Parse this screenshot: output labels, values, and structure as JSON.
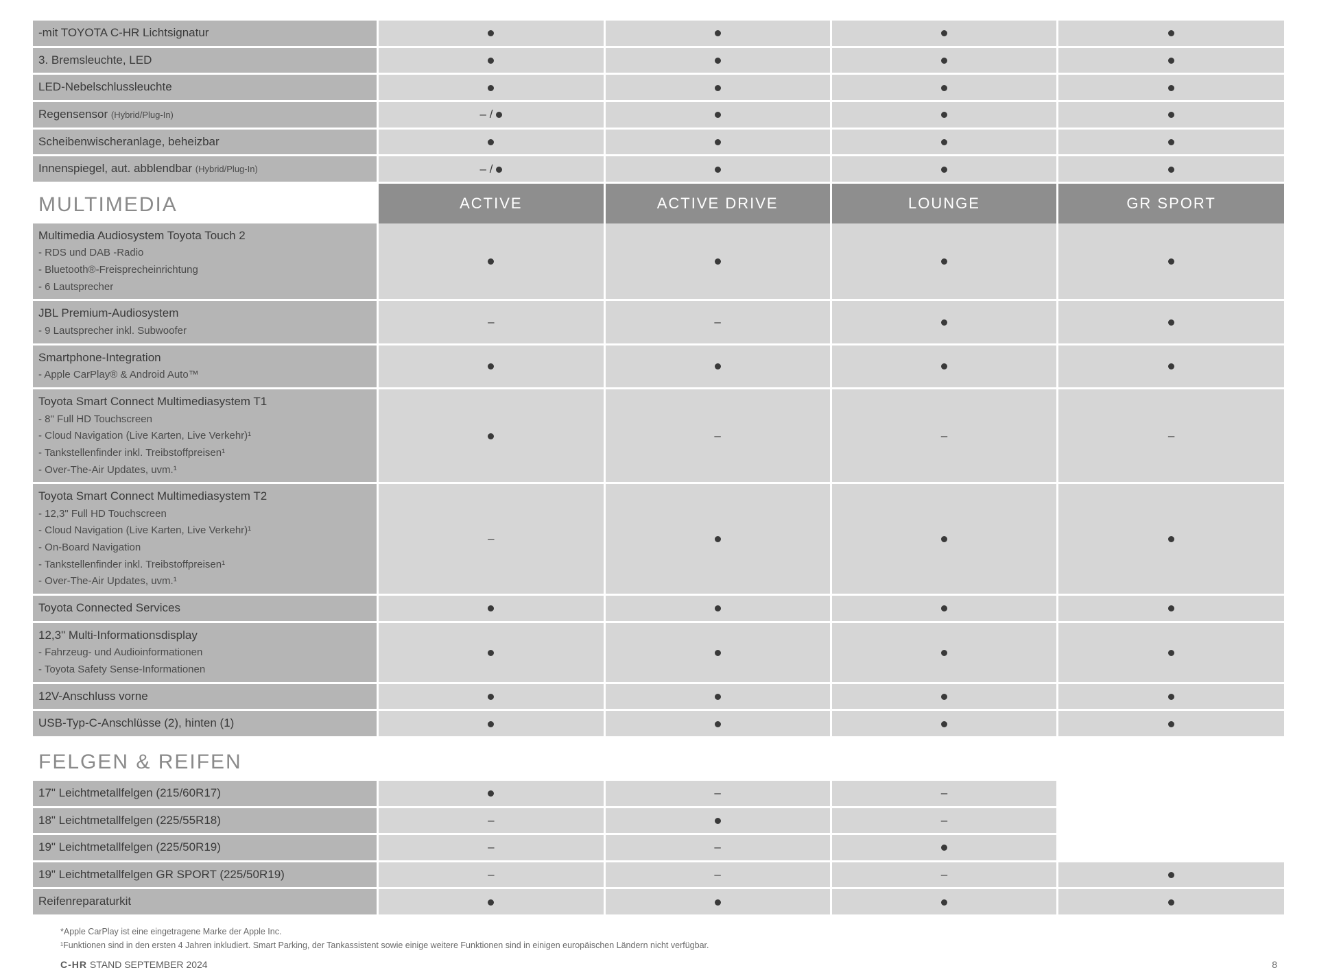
{
  "colors": {
    "header_bg": "#8e8e8e",
    "header_text": "#ffffff",
    "feature_bg": "#b5b5b5",
    "value_bg": "#d6d6d6",
    "section_title": "#8a8a8a",
    "dot": "#3a3a3a"
  },
  "symbols": {
    "dot": "●",
    "dash": "–",
    "dash_slash_dot": "– / ●"
  },
  "trims": [
    "ACTIVE",
    "ACTIVE DRIVE",
    "LOUNGE",
    "GR SPORT"
  ],
  "sections": [
    {
      "title": null,
      "show_trim_headers": false,
      "rows": [
        {
          "feature": "-mit TOYOTA C-HR Lichtsignatur",
          "values": [
            "dot",
            "dot",
            "dot",
            "dot"
          ]
        },
        {
          "feature": "3. Bremsleuchte, LED",
          "values": [
            "dot",
            "dot",
            "dot",
            "dot"
          ]
        },
        {
          "feature": "LED-Nebelschlussleuchte",
          "values": [
            "dot",
            "dot",
            "dot",
            "dot"
          ]
        },
        {
          "feature": "Regensensor",
          "note": "(Hybrid/Plug-In)",
          "values": [
            "dash_slash_dot",
            "dot",
            "dot",
            "dot"
          ]
        },
        {
          "feature": "Scheibenwischeranlage, beheizbar",
          "values": [
            "dot",
            "dot",
            "dot",
            "dot"
          ]
        },
        {
          "feature": "Innenspiegel, aut. abblendbar",
          "note": "(Hybrid/Plug-In)",
          "values": [
            "dash_slash_dot",
            "dot",
            "dot",
            "dot"
          ]
        }
      ]
    },
    {
      "title": "MULTIMEDIA",
      "show_trim_headers": true,
      "rows": [
        {
          "feature": "Multimedia Audiosystem Toyota Touch 2",
          "sub": [
            "- RDS und DAB -Radio",
            "- Bluetooth®-Freisprecheinrichtung",
            "- 6 Lautsprecher"
          ],
          "values": [
            "dot",
            "dot",
            "dot",
            "dot"
          ]
        },
        {
          "feature": "JBL Premium-Audiosystem",
          "sub": [
            "- 9 Lautsprecher inkl. Subwoofer"
          ],
          "values": [
            "dash",
            "dash",
            "dot",
            "dot"
          ]
        },
        {
          "feature": "Smartphone-Integration",
          "sub": [
            "- Apple CarPlay® & Android Auto™"
          ],
          "values": [
            "dot",
            "dot",
            "dot",
            "dot"
          ]
        },
        {
          "feature": "Toyota Smart Connect Multimediasystem T1",
          "sub": [
            "- 8\" Full HD Touchscreen",
            "- Cloud Navigation (Live Karten, Live Verkehr)¹",
            "- Tankstellenfinder inkl. Treibstoffpreisen¹",
            "- Over-The-Air Updates, uvm.¹"
          ],
          "values": [
            "dot",
            "dash",
            "dash",
            "dash"
          ]
        },
        {
          "feature": "Toyota Smart Connect Multimediasystem T2",
          "sub": [
            "- 12,3\" Full HD Touchscreen",
            "- Cloud Navigation (Live Karten, Live Verkehr)¹",
            "- On-Board Navigation",
            "- Tankstellenfinder inkl. Treibstoffpreisen¹",
            "- Over-The-Air Updates, uvm.¹"
          ],
          "values": [
            "dash",
            "dot",
            "dot",
            "dot"
          ]
        },
        {
          "feature": "Toyota Connected Services",
          "values": [
            "dot",
            "dot",
            "dot",
            "dot"
          ]
        },
        {
          "feature": "12,3\" Multi-Informationsdisplay",
          "sub": [
            "- Fahrzeug- und Audioinformationen",
            "- Toyota Safety Sense-Informationen"
          ],
          "values": [
            "dot",
            "dot",
            "dot",
            "dot"
          ]
        },
        {
          "feature": "12V-Anschluss vorne",
          "values": [
            "dot",
            "dot",
            "dot",
            "dot"
          ]
        },
        {
          "feature": "USB-Typ-C-Anschlüsse (2), hinten (1)",
          "values": [
            "dot",
            "dot",
            "dot",
            "dot"
          ]
        }
      ]
    },
    {
      "title": "FELGEN & REIFEN",
      "show_trim_headers": false,
      "rows": [
        {
          "feature": "17\" Leichtmetallfelgen (215/60R17)",
          "values": [
            "dot",
            "dash",
            "dash",
            "blank"
          ]
        },
        {
          "feature": "18\" Leichtmetallfelgen (225/55R18)",
          "values": [
            "dash",
            "dot",
            "dash",
            "blank"
          ]
        },
        {
          "feature": "19\" Leichtmetallfelgen (225/50R19)",
          "values": [
            "dash",
            "dash",
            "dot",
            "blank"
          ]
        },
        {
          "feature": "19\" Leichtmetallfelgen GR SPORT (225/50R19)",
          "values": [
            "dash",
            "dash",
            "dash",
            "dot"
          ]
        },
        {
          "feature": "Reifenreparaturkit",
          "values": [
            "dot",
            "dot",
            "dot",
            "dot"
          ]
        }
      ]
    }
  ],
  "footnotes": [
    "*Apple CarPlay ist eine eingetragene Marke der Apple Inc.",
    "¹Funktionen sind in den ersten 4 Jahren inkludiert. Smart Parking, der Tankassistent sowie einige weitere Funktionen sind in einigen europäischen Ländern nicht verfügbar."
  ],
  "footer": {
    "model": "C-HR",
    "date": "STAND SEPTEMBER 2024",
    "page": "8"
  }
}
